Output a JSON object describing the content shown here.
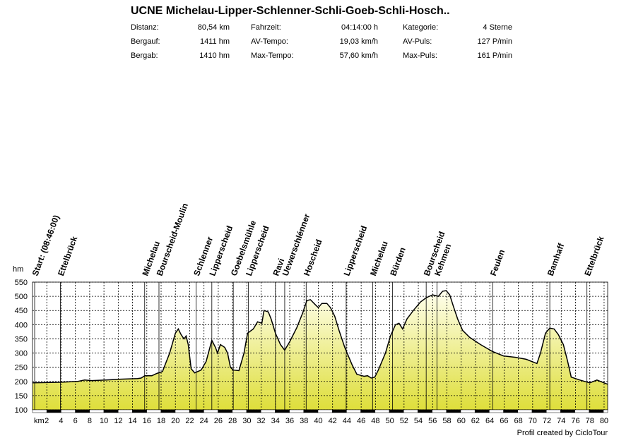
{
  "header": {
    "title": "UCNE Michelau-Lipper-Schlenner-Schli-Goeb-Schli-Hosch..",
    "stats": [
      [
        {
          "label": "Distanz:",
          "value": "80,54 km"
        },
        {
          "label": "Fahrzeit:",
          "value": "04:14:00 h"
        },
        {
          "label": "Kategorie:",
          "value": "4 Sterne"
        }
      ],
      [
        {
          "label": "Bergauf:",
          "value": "1411 hm"
        },
        {
          "label": "AV-Tempo:",
          "value": "19,03 km/h"
        },
        {
          "label": "AV-Puls:",
          "value": "127 P/min"
        }
      ],
      [
        {
          "label": "Bergab:",
          "value": "1410 hm"
        },
        {
          "label": "Max-Tempo:",
          "value": "57,60 km/h"
        },
        {
          "label": "Max-Puls:",
          "value": "161 P/min"
        }
      ]
    ]
  },
  "chart_data": {
    "type": "area",
    "x_label": "km",
    "y_label": "hm",
    "x": [
      0,
      3.9,
      6.3,
      7.3,
      8.3,
      10.3,
      12.3,
      14.7,
      15.2,
      15.7,
      16.7,
      17.4,
      18.2,
      19.2,
      20.0,
      20.4,
      20.8,
      21.2,
      21.5,
      21.8,
      22.2,
      22.7,
      23.6,
      24.3,
      25.1,
      25.6,
      25.9,
      26.3,
      26.9,
      27.3,
      27.7,
      28.1,
      28.9,
      29.6,
      30.1,
      30.9,
      31.5,
      32.1,
      32.4,
      33.0,
      33.4,
      34.0,
      34.7,
      35.3,
      36.0,
      37.0,
      37.8,
      38.4,
      38.9,
      39.6,
      40.0,
      40.5,
      41.2,
      41.7,
      42.3,
      42.9,
      43.7,
      44.7,
      45.4,
      46.4,
      46.9,
      47.4,
      47.9,
      48.4,
      49.4,
      50.1,
      50.8,
      51.3,
      51.8,
      52.4,
      53.3,
      54.3,
      55.1,
      56.0,
      56.8,
      57.4,
      57.9,
      58.4,
      58.9,
      59.5,
      60.2,
      61.2,
      62.7,
      64.4,
      65.9,
      67.6,
      69.1,
      70.6,
      71.1,
      71.8,
      72.4,
      73.0,
      73.6,
      74.3,
      74.9,
      75.4,
      76.6,
      78.0,
      79.0,
      80.0,
      80.5
    ],
    "values": [
      195,
      197,
      200,
      205,
      203,
      205,
      208,
      210,
      212,
      220,
      220,
      228,
      235,
      300,
      370,
      385,
      365,
      350,
      360,
      330,
      245,
      230,
      240,
      270,
      345,
      320,
      300,
      330,
      320,
      300,
      250,
      240,
      238,
      300,
      370,
      385,
      410,
      405,
      450,
      445,
      420,
      370,
      330,
      310,
      340,
      390,
      440,
      485,
      488,
      470,
      460,
      475,
      475,
      460,
      430,
      380,
      320,
      260,
      225,
      218,
      220,
      212,
      215,
      240,
      300,
      360,
      400,
      405,
      385,
      420,
      450,
      480,
      495,
      505,
      500,
      518,
      520,
      505,
      465,
      420,
      380,
      355,
      330,
      305,
      290,
      285,
      278,
      263,
      300,
      370,
      388,
      385,
      365,
      330,
      270,
      215,
      205,
      195,
      205,
      195,
      190
    ],
    "color": "#000000",
    "xlim": [
      0,
      80.5
    ],
    "ylim": [
      100,
      550
    ],
    "xticks": [
      2,
      4,
      6,
      8,
      10,
      12,
      14,
      16,
      18,
      20,
      22,
      24,
      26,
      28,
      30,
      32,
      34,
      36,
      38,
      40,
      42,
      44,
      46,
      48,
      50,
      52,
      54,
      56,
      58,
      60,
      62,
      64,
      66,
      68,
      70,
      72,
      74,
      76,
      78,
      80
    ],
    "yticks": [
      100,
      150,
      200,
      250,
      300,
      350,
      400,
      450,
      500,
      550
    ],
    "grid": true,
    "waypoints": [
      {
        "label": "Start: (08:46:00)",
        "km": 0.3
      },
      {
        "label": "Ettelbrück",
        "km": 3.9
      },
      {
        "label": "Michelau",
        "km": 15.7
      },
      {
        "label": "Bourscheid-Moulin",
        "km": 17.7
      },
      {
        "label": "Schlenner",
        "km": 22.9
      },
      {
        "label": "Lipperscheid",
        "km": 25.1
      },
      {
        "label": "Goebelsmühle",
        "km": 28.1
      },
      {
        "label": "Lipperscheid",
        "km": 30.2
      },
      {
        "label": "Ravi",
        "km": 34.0
      },
      {
        "label": "Uewerschlénner",
        "km": 35.3
      },
      {
        "label": "Hoscheid",
        "km": 38.3
      },
      {
        "label": "Lipperscheid",
        "km": 43.9
      },
      {
        "label": "Michelau",
        "km": 47.6
      },
      {
        "label": "Bürden",
        "km": 50.4
      },
      {
        "label": "Bourscheid",
        "km": 55.1
      },
      {
        "label": "Kehmen",
        "km": 56.6
      },
      {
        "label": "Feulen",
        "km": 64.4
      },
      {
        "label": "Bamhaff",
        "km": 72.4
      },
      {
        "label": "Ettelbrück",
        "km": 77.6
      }
    ]
  },
  "footer": "Profil created by CicloTour"
}
